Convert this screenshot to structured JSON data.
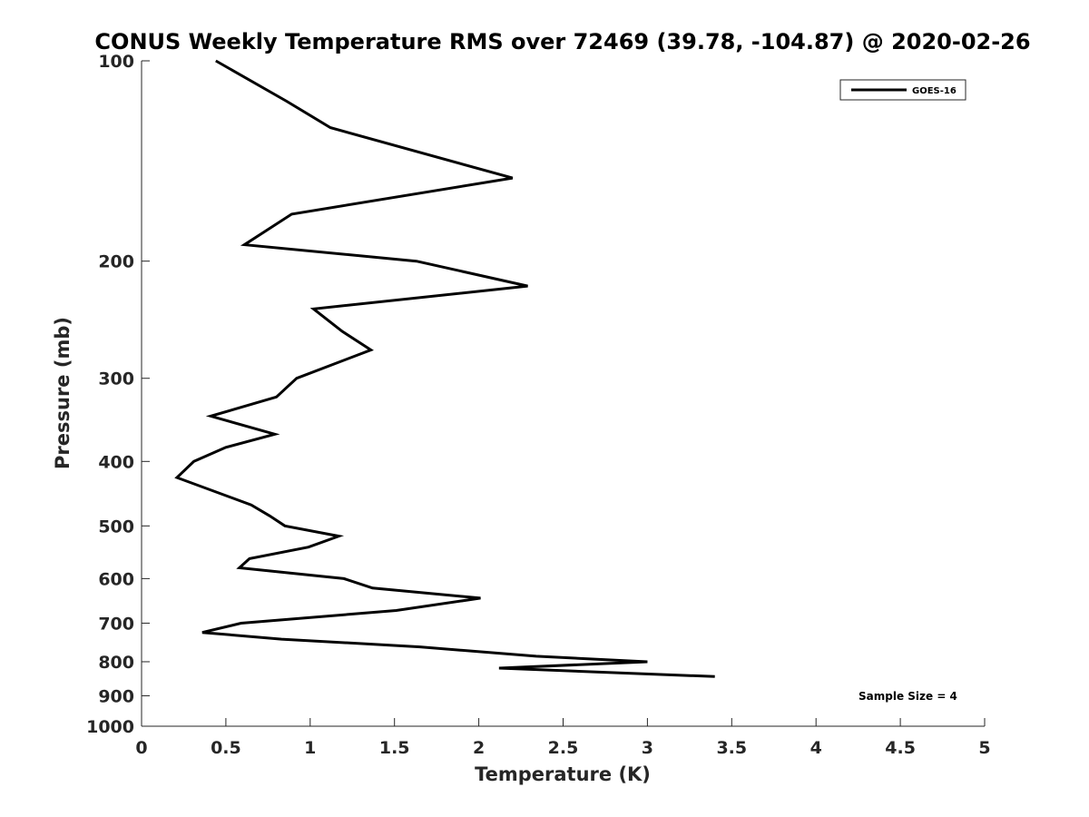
{
  "chart_data": {
    "type": "line",
    "title": "CONUS Weekly Temperature RMS over 72469 (39.78, -104.87) @ 2020-02-26",
    "xlabel": "Temperature (K)",
    "ylabel": "Pressure (mb)",
    "xlim": [
      0,
      5
    ],
    "ylim": [
      100,
      1000
    ],
    "y_scale": "log",
    "y_reversed": true,
    "grid": false,
    "legend_position": "top-right",
    "x_ticks": [
      "0",
      "0.5",
      "1",
      "1.5",
      "2",
      "2.5",
      "3",
      "3.5",
      "4",
      "4.5",
      "5"
    ],
    "y_ticks": [
      "100",
      "200",
      "300",
      "400",
      "500",
      "600",
      "700",
      "800",
      "900",
      "1000"
    ],
    "series": [
      {
        "name": "GOES-16",
        "color": "#000000",
        "points": [
          [
            0.44,
            100
          ],
          [
            0.86,
            115
          ],
          [
            1.12,
            126
          ],
          [
            2.2,
            150
          ],
          [
            0.89,
            170
          ],
          [
            0.61,
            189
          ],
          [
            1.63,
            200
          ],
          [
            2.29,
            218
          ],
          [
            1.02,
            236
          ],
          [
            1.19,
            255
          ],
          [
            1.36,
            272
          ],
          [
            0.92,
            300
          ],
          [
            0.8,
            320
          ],
          [
            0.41,
            342
          ],
          [
            0.79,
            364
          ],
          [
            0.5,
            381
          ],
          [
            0.31,
            400
          ],
          [
            0.21,
            423
          ],
          [
            0.65,
            465
          ],
          [
            0.76,
            483
          ],
          [
            0.85,
            500
          ],
          [
            1.17,
            518
          ],
          [
            0.99,
            538
          ],
          [
            0.64,
            560
          ],
          [
            0.58,
            578
          ],
          [
            1.2,
            600
          ],
          [
            1.37,
            620
          ],
          [
            2.01,
            642
          ],
          [
            1.51,
            670
          ],
          [
            0.59,
            700
          ],
          [
            0.36,
            723
          ],
          [
            0.83,
            740
          ],
          [
            1.65,
            760
          ],
          [
            2.34,
            785
          ],
          [
            3.0,
            800
          ],
          [
            2.12,
            818
          ],
          [
            3.4,
            842
          ]
        ]
      }
    ],
    "annotations": [
      {
        "text": "Sample Size = 4",
        "position": "bottom-right"
      }
    ]
  }
}
